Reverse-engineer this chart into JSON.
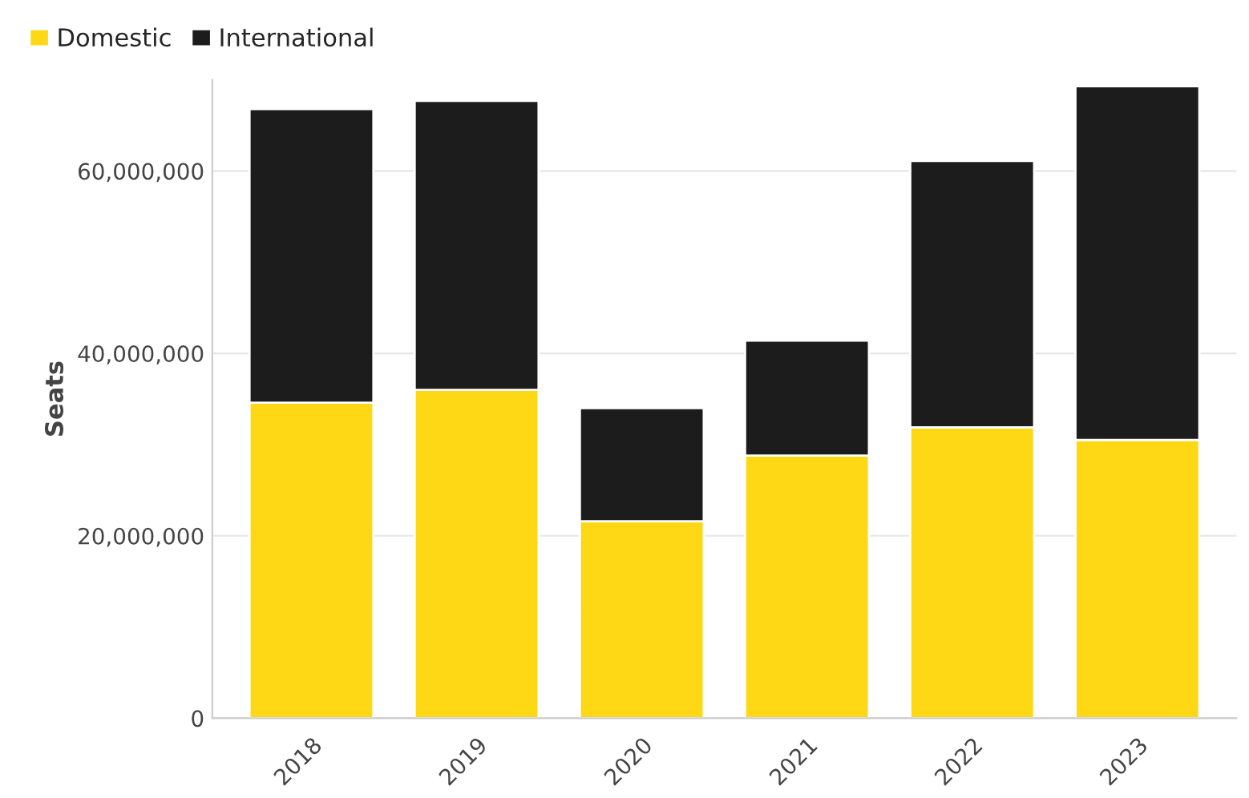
{
  "chart_data": {
    "type": "bar",
    "stacked": true,
    "ylabel": "Seats",
    "categories": [
      "2018",
      "2019",
      "2020",
      "2021",
      "2022",
      "2023"
    ],
    "series": [
      {
        "name": "Domestic",
        "color": "#ffd815",
        "values": [
          34600000,
          36000000,
          21600000,
          28800000,
          31900000,
          30500000
        ]
      },
      {
        "name": "International",
        "color": "#1c1c1c",
        "values": [
          32200000,
          31700000,
          12400000,
          12600000,
          29200000,
          38800000
        ]
      }
    ],
    "ylim": [
      0,
      70000000
    ],
    "yticks": [
      {
        "value": 0,
        "label": "0"
      },
      {
        "value": 20000000,
        "label": "20,000,000"
      },
      {
        "value": 40000000,
        "label": "40,000,000"
      },
      {
        "value": 60000000,
        "label": "60,000,000"
      }
    ],
    "grid": "y",
    "legend": "top left"
  }
}
